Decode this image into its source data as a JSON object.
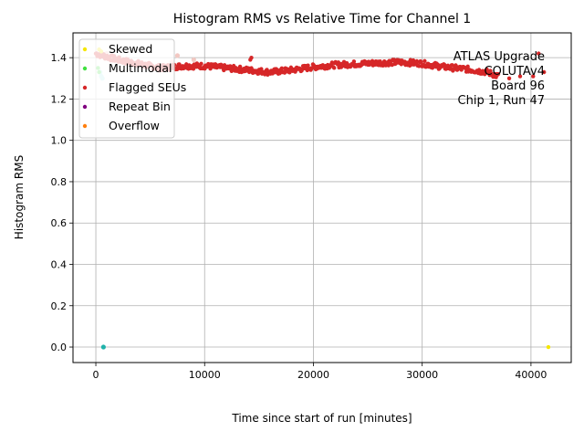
{
  "chart_data": {
    "type": "scatter",
    "title": "Histogram RMS vs Relative Time for Channel 1",
    "xlabel": "Time since start of run [minutes]",
    "ylabel": "Histogram RMS",
    "xlim": [
      -2100,
      43700
    ],
    "ylim": [
      -0.075,
      1.52
    ],
    "x_ticks": [
      0,
      10000,
      20000,
      30000,
      40000
    ],
    "x_tick_labels": [
      "0",
      "10000",
      "20000",
      "30000",
      "40000"
    ],
    "y_ticks": [
      0.0,
      0.2,
      0.4,
      0.6,
      0.8,
      1.0,
      1.2,
      1.4
    ],
    "y_tick_labels": [
      "0.0",
      "0.2",
      "0.4",
      "0.6",
      "0.8",
      "1.0",
      "1.2",
      "1.4"
    ],
    "grid": true,
    "legend_position": "top-left",
    "annotation": [
      "ATLAS Upgrade",
      "COLUTAv4",
      "Board 96",
      "Chip 1, Run 47"
    ],
    "series": [
      {
        "name": "Skewed",
        "color": "#f5e600",
        "points": [
          [
            300,
            1.44
          ],
          [
            500,
            1.43
          ],
          [
            41600,
            0.0
          ]
        ]
      },
      {
        "name": "Multimodal",
        "color": "#40e040",
        "points": [
          [
            200,
            1.35
          ],
          [
            300,
            1.33
          ]
        ]
      },
      {
        "name": "Flagged SEUs",
        "color": "#d62728",
        "trend": [
          [
            0,
            1.42
          ],
          [
            2000,
            1.39
          ],
          [
            4000,
            1.37
          ],
          [
            6000,
            1.35
          ],
          [
            8000,
            1.36
          ],
          [
            10000,
            1.36
          ],
          [
            12000,
            1.35
          ],
          [
            14000,
            1.34
          ],
          [
            16000,
            1.33
          ],
          [
            18000,
            1.34
          ],
          [
            20000,
            1.355
          ],
          [
            22000,
            1.365
          ],
          [
            24000,
            1.37
          ],
          [
            26000,
            1.375
          ],
          [
            28000,
            1.378
          ],
          [
            30000,
            1.372
          ],
          [
            32000,
            1.355
          ],
          [
            34000,
            1.345
          ],
          [
            36000,
            1.33
          ],
          [
            37000,
            1.31
          ]
        ],
        "x_range": [
          0,
          37000
        ],
        "outliers": [
          [
            14200,
            1.39
          ],
          [
            14300,
            1.4
          ],
          [
            38000,
            1.3
          ],
          [
            39000,
            1.31
          ],
          [
            40200,
            1.31
          ],
          [
            40700,
            1.42
          ],
          [
            41200,
            1.33
          ]
        ]
      },
      {
        "name": "Repeat Bin",
        "color": "#800080",
        "points": []
      },
      {
        "name": "Overflow",
        "color": "#ff7f0e",
        "points": []
      }
    ],
    "extra_markers": [
      {
        "color": "#f2c8c2",
        "points": [
          [
            1000,
            1.42
          ],
          [
            2000,
            1.4
          ],
          [
            3000,
            1.38
          ],
          [
            5000,
            1.36
          ],
          [
            7000,
            1.38
          ],
          [
            7500,
            1.41
          ],
          [
            9000,
            1.39
          ]
        ]
      },
      {
        "color": "#aeeaea",
        "points": [
          [
            400,
            1.33
          ],
          [
            500,
            1.31
          ],
          [
            600,
            1.3
          ]
        ]
      },
      {
        "color": "#20b2aa",
        "points": [
          [
            700,
            0.0
          ]
        ]
      }
    ]
  }
}
